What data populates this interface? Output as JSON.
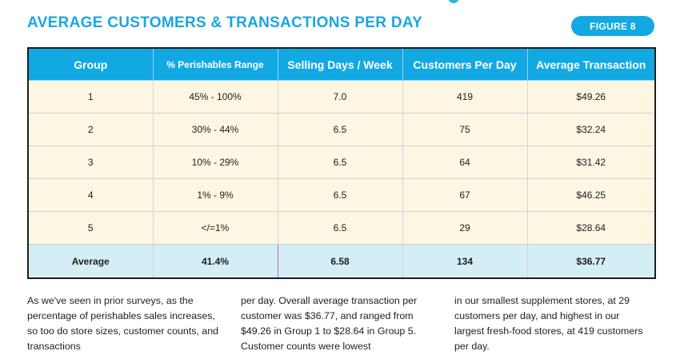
{
  "title": "AVERAGE CUSTOMERS & TRANSACTIONS PER DAY",
  "figure_label": "FIGURE 8",
  "table": {
    "headers": [
      "Group",
      "% Perishables Range",
      "Selling Days / Week",
      "Customers Per Day",
      "Average Transaction"
    ],
    "rows": [
      [
        "1",
        "45% - 100%",
        "7.0",
        "419",
        "$49.26"
      ],
      [
        "2",
        "30% - 44%",
        "6.5",
        "75",
        "$32.24"
      ],
      [
        "3",
        "10% - 29%",
        "6.5",
        "64",
        "$31.42"
      ],
      [
        "4",
        "1% - 9%",
        "6.5",
        "67",
        "$46.25"
      ],
      [
        "5",
        "</=1%",
        "6.5",
        "29",
        "$28.64"
      ]
    ],
    "average_row": [
      "Average",
      "41.4%",
      "6.58",
      "134",
      "$36.77"
    ]
  },
  "body_text": {
    "col1": "As we've seen in prior surveys, as the percentage of perishables sales increases, so too do store sizes, customer counts, and transactions",
    "col2": "per day. Overall average transaction per customer was $36.77, and ranged from $49.26 in Group 1 to $28.64 in Group 5. Customer counts were lowest",
    "col3": "in our smallest supplement stores, at 29 customers per day, and highest in our largest fresh-food stores, at 419 customers per day."
  },
  "colors": {
    "accent": "#12a9e3",
    "title": "#1aa6df",
    "row_bg": "#fdf6e3",
    "average_bg": "#d4eef5"
  }
}
